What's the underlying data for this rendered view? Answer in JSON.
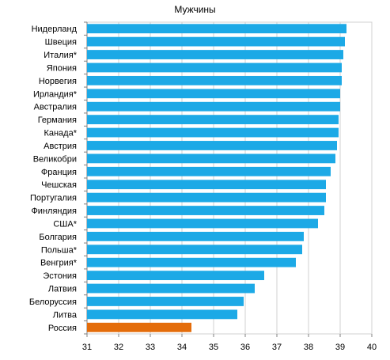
{
  "chart_data": {
    "type": "bar",
    "orientation": "horizontal",
    "title": "Мужчины",
    "xlabel": "",
    "ylabel": "",
    "xlim": [
      31,
      40
    ],
    "ticks": [
      31,
      32,
      33,
      34,
      35,
      36,
      37,
      38,
      39,
      40
    ],
    "grid": true,
    "categories": [
      "Нидерланд",
      "Швеция",
      "Италия*",
      "Япония",
      "Норвегия",
      "Ирландия*",
      "Австралия",
      "Германия",
      "Канада*",
      "Австрия",
      "Великобри",
      "Франция",
      "Чешская",
      "Португалия",
      "Финляндия",
      "США*",
      "Болгария",
      "Польша*",
      "Венгрия*",
      "Эстония",
      "Латвия",
      "Белоруссия",
      "Литва",
      "Россия"
    ],
    "values": [
      39.2,
      39.15,
      39.1,
      39.05,
      39.05,
      39.0,
      39.0,
      38.95,
      38.95,
      38.9,
      38.85,
      38.7,
      38.55,
      38.55,
      38.5,
      38.3,
      37.85,
      37.8,
      37.6,
      36.6,
      36.3,
      35.95,
      35.75,
      34.3
    ],
    "colors": {
      "default": "#1CA9E6",
      "highlight": "#E46C0A"
    },
    "highlight_category": "Россия"
  }
}
